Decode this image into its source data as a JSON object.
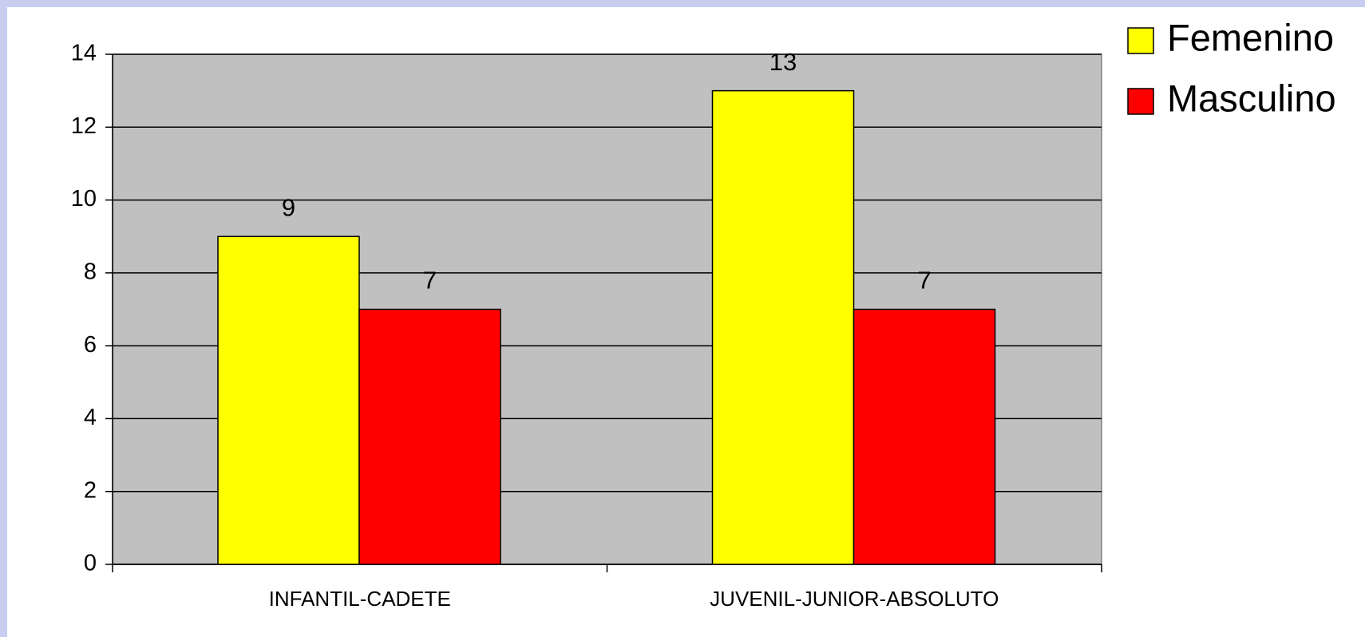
{
  "chart_data": {
    "type": "bar",
    "categories": [
      "INFANTIL-CADETE",
      "JUVENIL-JUNIOR-ABSOLUTO"
    ],
    "series": [
      {
        "name": "Femenino",
        "color": "#ffff00",
        "values": [
          9,
          13
        ]
      },
      {
        "name": "Masculino",
        "color": "#ff0000",
        "values": [
          7,
          7
        ]
      }
    ],
    "ylim": [
      0,
      14
    ],
    "yticks": [
      0,
      2,
      4,
      6,
      8,
      10,
      12,
      14
    ],
    "grid": true,
    "legend": "right"
  }
}
